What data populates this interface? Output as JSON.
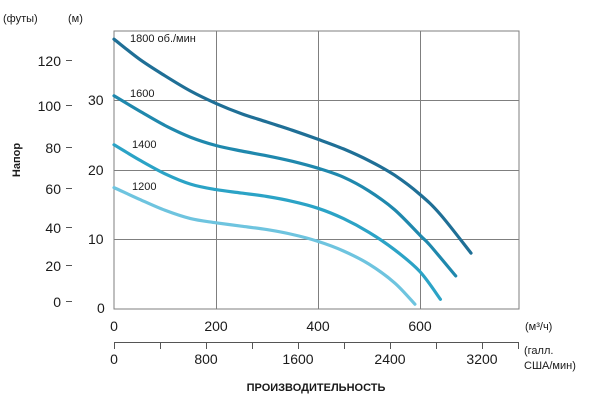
{
  "chart_data": {
    "type": "line",
    "title": "",
    "xlabel": "ПРОИЗВОДИТЕЛЬНОСТЬ",
    "ylabel": "Напор",
    "x_unit_primary": "(м³/ч)",
    "x_unit_secondary_line1": "(галл.",
    "x_unit_secondary_line2": "США/мин)",
    "y_unit_feet": "(футы)",
    "y_unit_m": "(м)",
    "xlim": [
      0,
      800
    ],
    "ylim": [
      0,
      40
    ],
    "x_ticks": [
      "0",
      "200",
      "400",
      "600"
    ],
    "x2_ticks": [
      "0",
      "800",
      "1600",
      "2400",
      "3200"
    ],
    "y_feet_ticks": [
      "0",
      "20",
      "40",
      "60",
      "80",
      "100",
      "120"
    ],
    "y_m_ticks": [
      "0",
      "10",
      "20",
      "30"
    ],
    "grid": true,
    "legend": "inline",
    "x_values_unit": "m3/h",
    "y_values_unit": "m",
    "series": [
      {
        "name": "1800 об./мин",
        "color": "#1f6f96",
        "x": [
          0,
          50,
          100,
          150,
          200,
          250,
          300,
          350,
          400,
          450,
          500,
          550,
          600,
          640,
          700
        ],
        "y": [
          39.1,
          36.2,
          33.8,
          31.6,
          29.8,
          28.3,
          27.1,
          25.9,
          24.6,
          23.2,
          21.5,
          19.4,
          16.6,
          13.7,
          8.1
        ]
      },
      {
        "name": "1600",
        "color": "#1f88ad",
        "x": [
          0,
          50,
          100,
          150,
          200,
          250,
          300,
          350,
          400,
          450,
          500,
          550,
          600,
          620,
          670
        ],
        "y": [
          30.9,
          28.7,
          26.6,
          24.9,
          23.7,
          22.9,
          22.2,
          21.4,
          20.4,
          19.1,
          17.1,
          14.4,
          10.7,
          9.2,
          4.8
        ]
      },
      {
        "name": "1400",
        "color": "#2ba3c6",
        "x": [
          0,
          50,
          100,
          150,
          200,
          250,
          300,
          350,
          400,
          450,
          500,
          550,
          600,
          640
        ],
        "y": [
          23.8,
          21.6,
          19.6,
          18.1,
          17.3,
          16.8,
          16.3,
          15.6,
          14.6,
          13.1,
          11.1,
          8.6,
          5.4,
          1.4
        ]
      },
      {
        "name": "1200",
        "color": "#6ec4df",
        "x": [
          0,
          50,
          100,
          150,
          200,
          250,
          300,
          350,
          400,
          450,
          500,
          550,
          590
        ],
        "y": [
          17.6,
          15.9,
          14.3,
          13.1,
          12.5,
          12.0,
          11.5,
          10.8,
          9.8,
          8.4,
          6.5,
          3.8,
          0.7
        ]
      }
    ]
  }
}
